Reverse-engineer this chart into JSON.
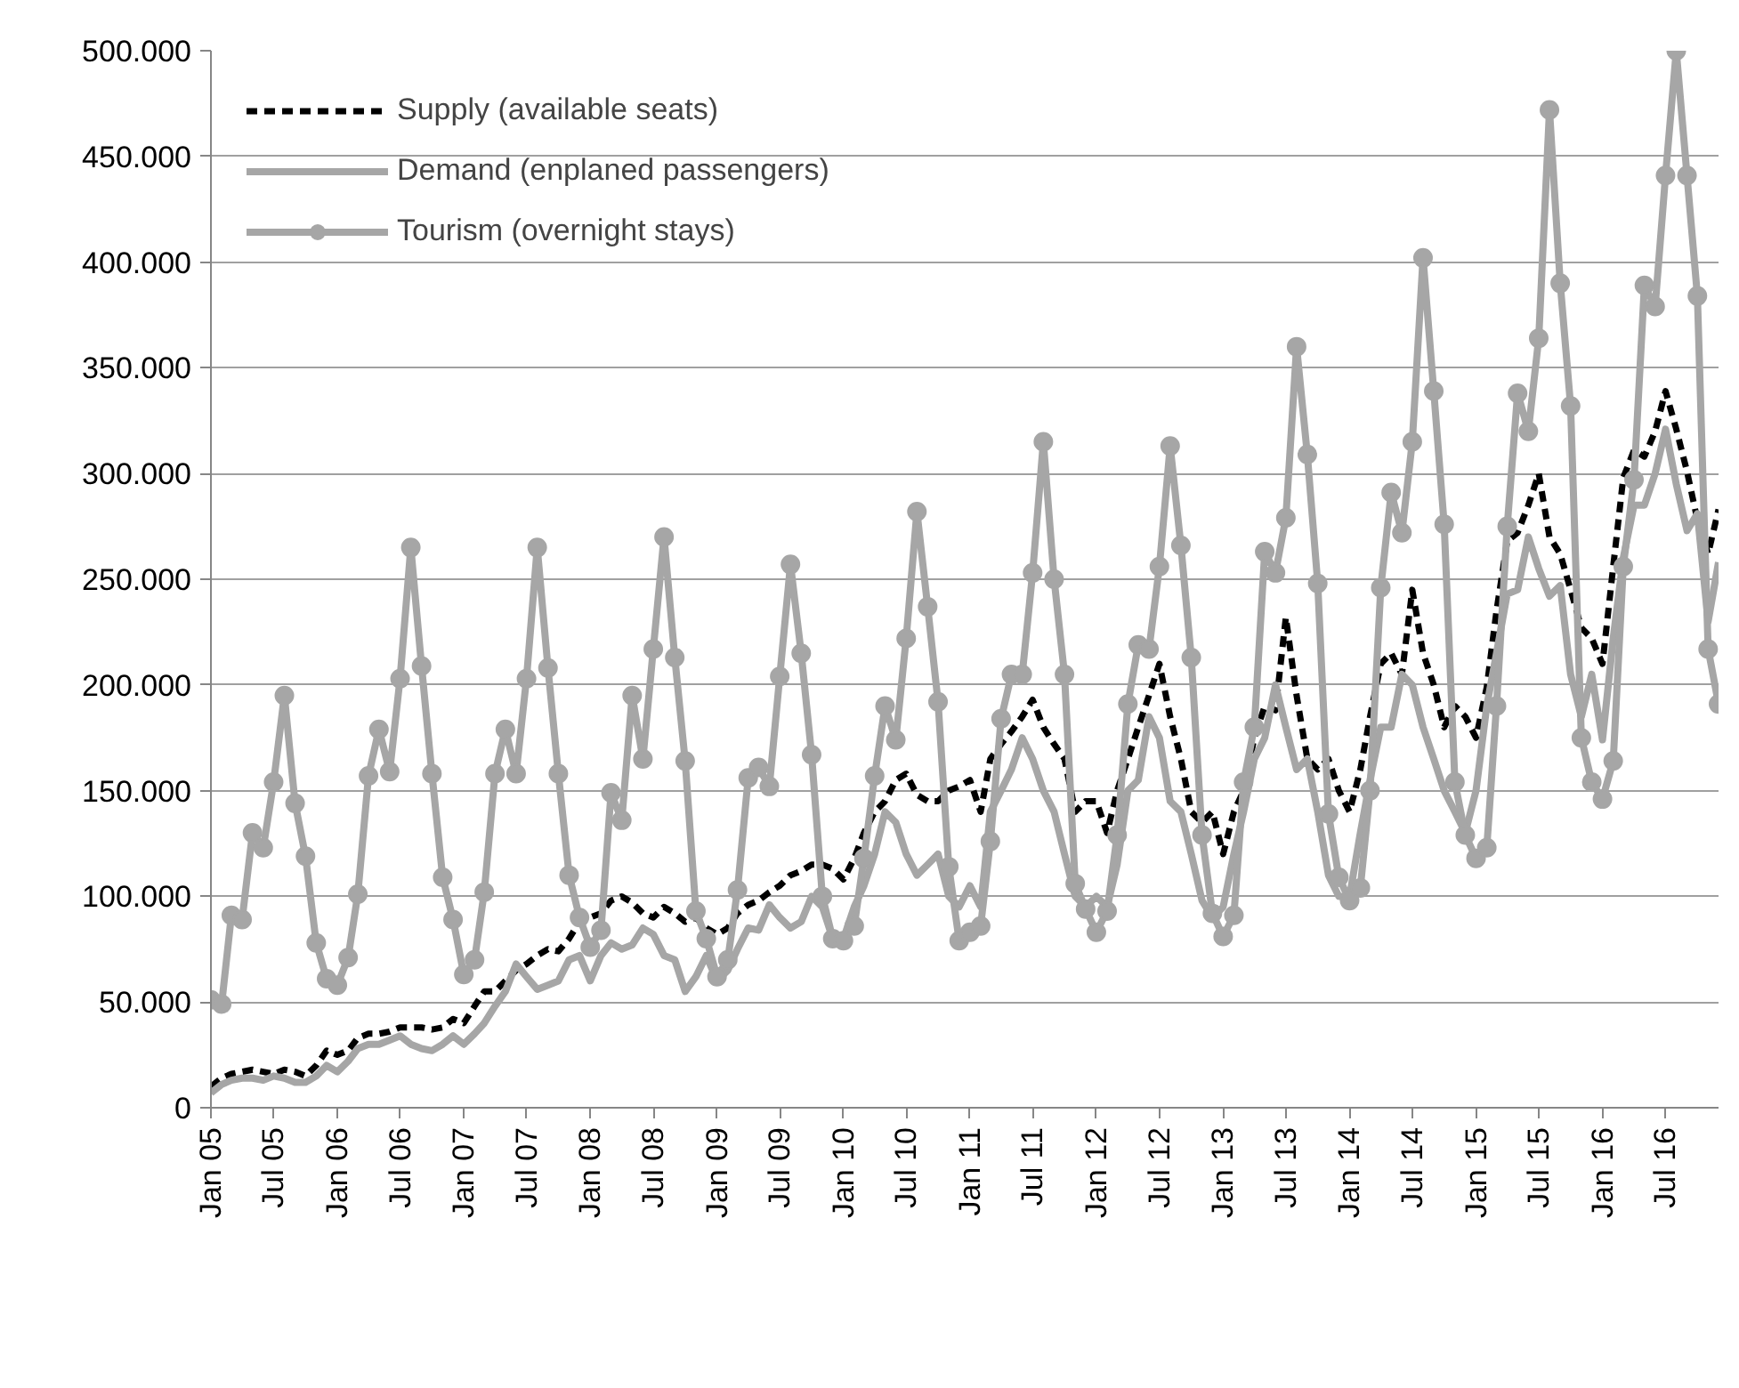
{
  "chart_data": {
    "type": "line",
    "x": [
      "2005-01",
      "2005-02",
      "2005-03",
      "2005-04",
      "2005-05",
      "2005-06",
      "2005-07",
      "2005-08",
      "2005-09",
      "2005-10",
      "2005-11",
      "2005-12",
      "2006-01",
      "2006-02",
      "2006-03",
      "2006-04",
      "2006-05",
      "2006-06",
      "2006-07",
      "2006-08",
      "2006-09",
      "2006-10",
      "2006-11",
      "2006-12",
      "2007-01",
      "2007-02",
      "2007-03",
      "2007-04",
      "2007-05",
      "2007-06",
      "2007-07",
      "2007-08",
      "2007-09",
      "2007-10",
      "2007-11",
      "2007-12",
      "2008-01",
      "2008-02",
      "2008-03",
      "2008-04",
      "2008-05",
      "2008-06",
      "2008-07",
      "2008-08",
      "2008-09",
      "2008-10",
      "2008-11",
      "2008-12",
      "2009-01",
      "2009-02",
      "2009-03",
      "2009-04",
      "2009-05",
      "2009-06",
      "2009-07",
      "2009-08",
      "2009-09",
      "2009-10",
      "2009-11",
      "2009-12",
      "2010-01",
      "2010-02",
      "2010-03",
      "2010-04",
      "2010-05",
      "2010-06",
      "2010-07",
      "2010-08",
      "2010-09",
      "2010-10",
      "2010-11",
      "2010-12",
      "2011-01",
      "2011-02",
      "2011-03",
      "2011-04",
      "2011-05",
      "2011-06",
      "2011-07",
      "2011-08",
      "2011-09",
      "2011-10",
      "2011-11",
      "2011-12",
      "2012-01",
      "2012-02",
      "2012-03",
      "2012-04",
      "2012-05",
      "2012-06",
      "2012-07",
      "2012-08",
      "2012-09",
      "2012-10",
      "2012-11",
      "2012-12",
      "2013-01",
      "2013-02",
      "2013-03",
      "2013-04",
      "2013-05",
      "2013-06",
      "2013-07",
      "2013-08",
      "2013-09",
      "2013-10",
      "2013-11",
      "2013-12",
      "2014-01",
      "2014-02",
      "2014-03",
      "2014-04",
      "2014-05",
      "2014-06",
      "2014-07",
      "2014-08",
      "2014-09",
      "2014-10",
      "2014-11",
      "2014-12",
      "2015-01",
      "2015-02",
      "2015-03",
      "2015-04",
      "2015-05",
      "2015-06",
      "2015-07",
      "2015-08",
      "2015-09",
      "2015-10",
      "2015-11",
      "2015-12",
      "2016-01",
      "2016-02",
      "2016-03",
      "2016-04",
      "2016-05",
      "2016-06",
      "2016-07",
      "2016-08",
      "2016-09",
      "2016-10",
      "2016-11",
      "2016-12"
    ],
    "series": [
      {
        "name": "Supply (available seats)",
        "color": "#000000",
        "line_style": "dashed",
        "marker": "none",
        "values": [
          10000,
          14000,
          16000,
          17000,
          18000,
          17000,
          16000,
          18000,
          17000,
          15000,
          20000,
          27000,
          25000,
          27000,
          33000,
          35000,
          35000,
          36000,
          38000,
          38000,
          38000,
          37000,
          38000,
          42000,
          40000,
          48000,
          55000,
          55000,
          60000,
          65000,
          68000,
          72000,
          75000,
          74000,
          80000,
          88000,
          90000,
          92000,
          98000,
          100000,
          97000,
          92000,
          90000,
          95000,
          92000,
          88000,
          90000,
          85000,
          82000,
          85000,
          92000,
          96000,
          98000,
          102000,
          105000,
          110000,
          112000,
          115000,
          115000,
          113000,
          108000,
          118000,
          130000,
          140000,
          145000,
          155000,
          158000,
          148000,
          145000,
          145000,
          150000,
          152000,
          155000,
          140000,
          165000,
          172000,
          178000,
          185000,
          193000,
          180000,
          172000,
          165000,
          140000,
          145000,
          145000,
          130000,
          150000,
          165000,
          180000,
          195000,
          210000,
          185000,
          165000,
          140000,
          135000,
          140000,
          120000,
          140000,
          150000,
          175000,
          190000,
          188000,
          232000,
          195000,
          165000,
          160000,
          165000,
          150000,
          140000,
          160000,
          185000,
          210000,
          215000,
          205000,
          245000,
          215000,
          200000,
          180000,
          190000,
          185000,
          175000,
          199000,
          235000,
          268000,
          272000,
          285000,
          300000,
          270000,
          262000,
          245000,
          227000,
          222000,
          210000,
          256000,
          298000,
          311000,
          308000,
          320000,
          339000,
          321000,
          301000,
          278000,
          262000,
          283000
        ]
      },
      {
        "name": "Demand (enplaned passengers)",
        "color": "#a6a6a6",
        "line_style": "solid",
        "marker": "none",
        "values": [
          7000,
          11000,
          13000,
          14000,
          14000,
          13000,
          15000,
          14000,
          12000,
          12000,
          15000,
          20000,
          17000,
          22000,
          28000,
          30000,
          30000,
          32000,
          34000,
          30000,
          28000,
          27000,
          30000,
          34000,
          30000,
          35000,
          40000,
          48000,
          55000,
          68000,
          62000,
          56000,
          58000,
          60000,
          70000,
          72000,
          60000,
          72000,
          78000,
          75000,
          77000,
          85000,
          82000,
          72000,
          70000,
          55000,
          62000,
          72000,
          60000,
          65000,
          75000,
          85000,
          84000,
          96000,
          90000,
          85000,
          88000,
          100000,
          95000,
          80000,
          80000,
          95000,
          105000,
          120000,
          140000,
          135000,
          120000,
          110000,
          115000,
          120000,
          100000,
          95000,
          105000,
          95000,
          140000,
          150000,
          160000,
          175000,
          165000,
          150000,
          140000,
          120000,
          100000,
          95000,
          100000,
          95000,
          115000,
          150000,
          155000,
          185000,
          175000,
          145000,
          140000,
          120000,
          98000,
          90000,
          95000,
          120000,
          140000,
          165000,
          175000,
          200000,
          180000,
          160000,
          165000,
          140000,
          110000,
          100000,
          100000,
          130000,
          155000,
          180000,
          180000,
          205000,
          200000,
          180000,
          165000,
          150000,
          140000,
          130000,
          150000,
          190000,
          215000,
          243000,
          245000,
          270000,
          255000,
          242000,
          247000,
          205000,
          185000,
          205000,
          174000,
          222000,
          260000,
          285000,
          285000,
          300000,
          321000,
          295000,
          273000,
          281000,
          230000,
          258000
        ]
      },
      {
        "name": "Tourism (overnight stays)",
        "color": "#a6a6a6",
        "line_style": "solid",
        "marker": "circle",
        "values": [
          51000,
          49000,
          91000,
          89000,
          130000,
          123000,
          154000,
          195000,
          144000,
          119000,
          78000,
          61000,
          58000,
          71000,
          101000,
          157000,
          179000,
          159000,
          203000,
          265000,
          209000,
          158000,
          109000,
          89000,
          63000,
          70000,
          102000,
          158000,
          179000,
          158000,
          203000,
          265000,
          208000,
          158000,
          110000,
          90000,
          76000,
          84000,
          149000,
          136000,
          195000,
          165000,
          217000,
          270000,
          213000,
          164000,
          93000,
          80000,
          62000,
          70000,
          103000,
          156000,
          161000,
          152000,
          204000,
          257000,
          215000,
          167000,
          100000,
          80000,
          79000,
          86000,
          118000,
          157000,
          190000,
          174000,
          222000,
          282000,
          237000,
          192000,
          114000,
          79000,
          83000,
          86000,
          126000,
          184000,
          205000,
          205000,
          253000,
          315000,
          250000,
          205000,
          106000,
          94000,
          83000,
          93000,
          129000,
          191000,
          219000,
          217000,
          256000,
          313000,
          266000,
          213000,
          129000,
          92000,
          81000,
          91000,
          154000,
          180000,
          263000,
          253000,
          279000,
          360000,
          309000,
          248000,
          139000,
          109000,
          98000,
          104000,
          150000,
          246000,
          291000,
          272000,
          315000,
          402000,
          339000,
          276000,
          154000,
          129000,
          118000,
          123000,
          190000,
          275000,
          338000,
          320000,
          364000,
          472000,
          390000,
          332000,
          175000,
          154000,
          146000,
          164000,
          256000,
          297000,
          389000,
          379000,
          441000,
          500000,
          441000,
          384000,
          217000,
          191000
        ]
      }
    ],
    "xlim": [
      "2005-01",
      "2016-12"
    ],
    "xticks": [
      {
        "value": "2005-01",
        "label": "Jan 05"
      },
      {
        "value": "2005-07",
        "label": "Jul 05"
      },
      {
        "value": "2006-01",
        "label": "Jan 06"
      },
      {
        "value": "2006-07",
        "label": "Jul 06"
      },
      {
        "value": "2007-01",
        "label": "Jan 07"
      },
      {
        "value": "2007-07",
        "label": "Jul 07"
      },
      {
        "value": "2008-01",
        "label": "Jan 08"
      },
      {
        "value": "2008-07",
        "label": "Jul 08"
      },
      {
        "value": "2009-01",
        "label": "Jan 09"
      },
      {
        "value": "2009-07",
        "label": "Jul 09"
      },
      {
        "value": "2010-01",
        "label": "Jan 10"
      },
      {
        "value": "2010-07",
        "label": "Jul 10"
      },
      {
        "value": "2011-01",
        "label": "Jan 11"
      },
      {
        "value": "2011-07",
        "label": "Jul 11"
      },
      {
        "value": "2012-01",
        "label": "Jan 12"
      },
      {
        "value": "2012-07",
        "label": "Jul 12"
      },
      {
        "value": "2013-01",
        "label": "Jan 13"
      },
      {
        "value": "2013-07",
        "label": "Jul 13"
      },
      {
        "value": "2014-01",
        "label": "Jan 14"
      },
      {
        "value": "2014-07",
        "label": "Jul 14"
      },
      {
        "value": "2015-01",
        "label": "Jan 15"
      },
      {
        "value": "2015-07",
        "label": "Jul 15"
      },
      {
        "value": "2016-01",
        "label": "Jan 16"
      },
      {
        "value": "2016-07",
        "label": "Jul 16"
      }
    ],
    "ylim": [
      0,
      500000
    ],
    "yticks": [
      0,
      {
        "value": 50000,
        "label": "50.000"
      },
      {
        "value": 100000,
        "label": "100.000"
      },
      {
        "value": 150000,
        "label": "150.000"
      },
      {
        "value": 200000,
        "label": "200.000"
      },
      {
        "value": 250000,
        "label": "250.000"
      },
      {
        "value": 300000,
        "label": "300.000"
      },
      {
        "value": 350000,
        "label": "350.000"
      },
      {
        "value": 400000,
        "label": "400.000"
      },
      {
        "value": 450000,
        "label": "450.000"
      },
      {
        "value": 500000,
        "label": "500.000"
      }
    ],
    "grid": "y",
    "legend": "top left"
  }
}
